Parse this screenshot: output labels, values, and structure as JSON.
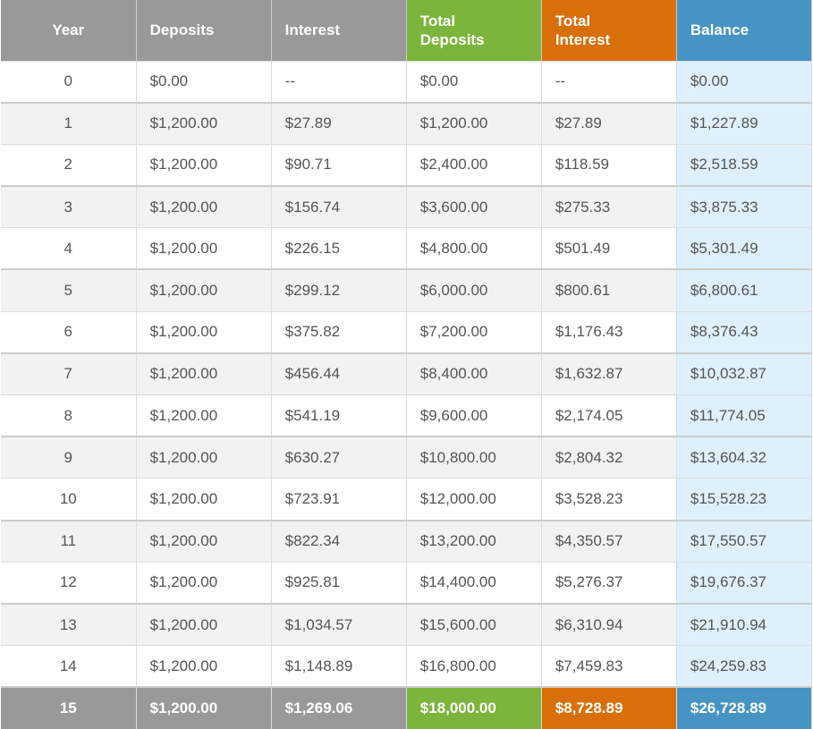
{
  "table": {
    "header": [
      "Year",
      "Deposits",
      "Interest",
      "Total Deposits",
      "Total Interest",
      "Balance"
    ],
    "rows": [
      [
        "0",
        "$0.00",
        "--",
        "$0.00",
        "--",
        "$0.00"
      ],
      [
        "1",
        "$1,200.00",
        "$27.89",
        "$1,200.00",
        "$27.89",
        "$1,227.89"
      ],
      [
        "2",
        "$1,200.00",
        "$90.71",
        "$2,400.00",
        "$118.59",
        "$2,518.59"
      ],
      [
        "3",
        "$1,200.00",
        "$156.74",
        "$3,600.00",
        "$275.33",
        "$3,875.33"
      ],
      [
        "4",
        "$1,200.00",
        "$226.15",
        "$4,800.00",
        "$501.49",
        "$5,301.49"
      ],
      [
        "5",
        "$1,200.00",
        "$299.12",
        "$6,000.00",
        "$800.61",
        "$6,800.61"
      ],
      [
        "6",
        "$1,200.00",
        "$375.82",
        "$7,200.00",
        "$1,176.43",
        "$8,376.43"
      ],
      [
        "7",
        "$1,200.00",
        "$456.44",
        "$8,400.00",
        "$1,632.87",
        "$10,032.87"
      ],
      [
        "8",
        "$1,200.00",
        "$541.19",
        "$9,600.00",
        "$2,174.05",
        "$11,774.05"
      ],
      [
        "9",
        "$1,200.00",
        "$630.27",
        "$10,800.00",
        "$2,804.32",
        "$13,604.32"
      ],
      [
        "10",
        "$1,200.00",
        "$723.91",
        "$12,000.00",
        "$3,528.23",
        "$15,528.23"
      ],
      [
        "11",
        "$1,200.00",
        "$822.34",
        "$13,200.00",
        "$4,350.57",
        "$17,550.57"
      ],
      [
        "12",
        "$1,200.00",
        "$925.81",
        "$14,400.00",
        "$5,276.37",
        "$19,676.37"
      ],
      [
        "13",
        "$1,200.00",
        "$1,034.57",
        "$15,600.00",
        "$6,310.94",
        "$21,910.94"
      ],
      [
        "14",
        "$1,200.00",
        "$1,148.89",
        "$16,800.00",
        "$7,459.83",
        "$24,259.83"
      ],
      [
        "15",
        "$1,200.00",
        "$1,269.06",
        "$18,000.00",
        "$8,728.89",
        "$26,728.89"
      ]
    ]
  }
}
